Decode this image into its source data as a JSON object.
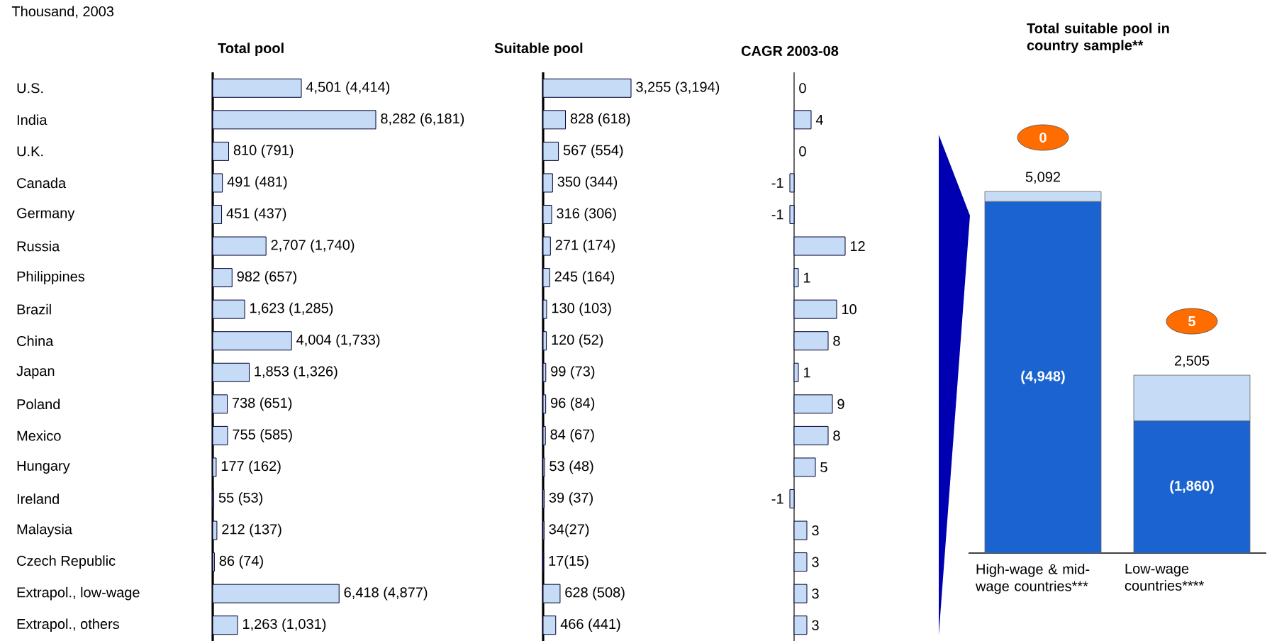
{
  "chart_data": [
    {
      "type": "bar",
      "orientation": "horizontal",
      "title": "Total pool",
      "annotations": [
        "Thousand, 2003"
      ],
      "categories": [
        "U.S.",
        "India",
        "U.K.",
        "Canada",
        "Germany",
        "Russia",
        "Philippines",
        "Brazil",
        "China",
        "Japan",
        "Poland",
        "Mexico",
        "Hungary",
        "Ireland",
        "Malaysia",
        "Czech Republic",
        "Extrapol., low-wage",
        "Extrapol., others"
      ],
      "values": [
        4501,
        8282,
        810,
        491,
        451,
        2707,
        982,
        1623,
        4004,
        1853,
        738,
        755,
        177,
        55,
        212,
        86,
        6418,
        1263
      ],
      "value_labels": [
        "4,501 (4,414)",
        "8,282 (6,181)",
        "810 (791)",
        "491 (481)",
        "451 (437)",
        "2,707 (1,740)",
        "982 (657)",
        "1,623 (1,285)",
        "4,004 (1,733)",
        "1,853 (1,326)",
        "738 (651)",
        "755 (585)",
        "177 (162)",
        "55 (53)",
        "212 (137)",
        "86 (74)",
        "6,418 (4,877)",
        "1,263 (1,031)"
      ],
      "color": "#c6dbf5"
    },
    {
      "type": "bar",
      "orientation": "horizontal",
      "title": "Suitable pool",
      "categories": [
        null,
        null,
        null,
        null,
        null,
        null,
        null,
        null,
        null,
        null,
        null,
        null,
        null,
        null,
        null,
        null,
        null,
        null
      ],
      "values": [
        3255,
        828,
        567,
        350,
        316,
        271,
        245,
        130,
        120,
        99,
        96,
        84,
        53,
        39,
        34,
        17,
        628,
        466
      ],
      "value_labels": [
        "3,255 (3,194)",
        "828 (618)",
        "567 (554)",
        "350 (344)",
        "316 (306)",
        "271 (174)",
        "245 (164)",
        "130 (103)",
        "120 (52)",
        "99 (73)",
        "96 (84)",
        "84 (67)",
        "53 (48)",
        "39 (37)",
        "34(27)",
        "17(15)",
        "628 (508)",
        "466 (441)"
      ],
      "color": "#c6dbf5"
    },
    {
      "type": "bar",
      "orientation": "horizontal",
      "title": "CAGR 2003-08",
      "data_labels": true,
      "categories": [
        null,
        null,
        null,
        null,
        null,
        null,
        null,
        null,
        null,
        null,
        null,
        null,
        null,
        null,
        null,
        null,
        null,
        null
      ],
      "values": [
        0,
        4,
        0,
        -1,
        -1,
        12,
        1,
        10,
        8,
        1,
        9,
        8,
        5,
        -1,
        3,
        3,
        3,
        3
      ],
      "color": "#c6dbf5"
    },
    {
      "type": "bar",
      "stacked": true,
      "title": "Total suitable pool in country sample**",
      "categories": [
        "High-wage & mid-wage countries***",
        "Low-wage countries****"
      ],
      "series": [
        {
          "color": "#1a63d0",
          "values": [
            4948,
            1860
          ],
          "value_labels": [
            "(4,948)",
            "(1,860)"
          ]
        },
        {
          "color": "#c6dbf5",
          "values": [
            144,
            645
          ]
        }
      ],
      "totals": [
        "5,092",
        "2,505"
      ],
      "annotations": [
        "0",
        "5"
      ]
    }
  ]
}
